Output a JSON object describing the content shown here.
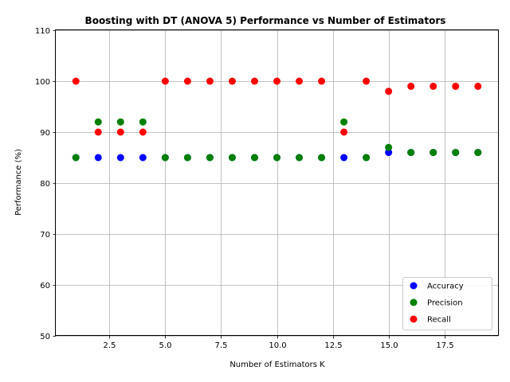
{
  "chart_data": {
    "type": "scatter",
    "title": "Boosting with DT (ANOVA 5) Performance vs Number of Estimators",
    "xlabel": "Number of Estimators K",
    "ylabel": "Performance (%)",
    "xlim": [
      0.1,
      19.9
    ],
    "ylim": [
      50,
      110
    ],
    "xticks": [
      2.5,
      5.0,
      7.5,
      10.0,
      12.5,
      15.0,
      17.5
    ],
    "xtick_labels": [
      "2.5",
      "5.0",
      "7.5",
      "10.0",
      "12.5",
      "15.0",
      "17.5"
    ],
    "yticks": [
      50,
      60,
      70,
      80,
      90,
      100,
      110
    ],
    "ytick_labels": [
      "50",
      "60",
      "70",
      "80",
      "90",
      "100",
      "110"
    ],
    "grid": true,
    "legend_position": "bottom-right",
    "series": [
      {
        "name": "Accuracy",
        "color": "#0000ff",
        "x": [
          1,
          2,
          3,
          4,
          5,
          6,
          7,
          8,
          9,
          10,
          11,
          12,
          13,
          14,
          15,
          16,
          17,
          18,
          19
        ],
        "y": [
          85,
          85,
          85,
          85,
          85,
          85,
          85,
          85,
          85,
          85,
          85,
          85,
          85,
          85,
          86,
          86,
          86,
          86,
          86
        ]
      },
      {
        "name": "Precision",
        "color": "#008000",
        "x": [
          1,
          2,
          3,
          4,
          5,
          6,
          7,
          8,
          9,
          10,
          11,
          12,
          13,
          14,
          15,
          16,
          17,
          18,
          19
        ],
        "y": [
          85,
          92,
          92,
          92,
          85,
          85,
          85,
          85,
          85,
          85,
          85,
          85,
          92,
          85,
          87,
          86,
          86,
          86,
          86
        ]
      },
      {
        "name": "Recall",
        "color": "#ff0000",
        "x": [
          1,
          2,
          3,
          4,
          5,
          6,
          7,
          8,
          9,
          10,
          11,
          12,
          13,
          14,
          15,
          16,
          17,
          18,
          19
        ],
        "y": [
          100,
          90,
          90,
          90,
          100,
          100,
          100,
          100,
          100,
          100,
          100,
          100,
          90,
          100,
          98,
          99,
          99,
          99,
          99
        ]
      }
    ]
  }
}
